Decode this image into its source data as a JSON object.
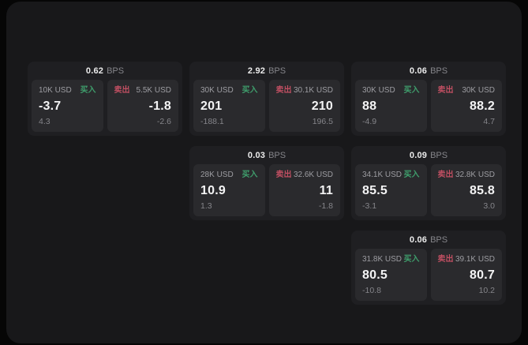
{
  "labels": {
    "unit": "BPS",
    "buy": "买入",
    "sell": "卖出"
  },
  "colors": {
    "buy": "#3f9e6c",
    "sell": "#c04f62"
  },
  "cards": [
    {
      "bps": "0.62",
      "buy": {
        "amount": "10K USD",
        "value": "-3.7",
        "delta": "4.3"
      },
      "sell": {
        "amount": "5.5K USD",
        "value": "-1.8",
        "delta": "-2.6"
      }
    },
    {
      "bps": "2.92",
      "buy": {
        "amount": "30K USD",
        "value": "201",
        "delta": "-188.1"
      },
      "sell": {
        "amount": "30.1K USD",
        "value": "210",
        "delta": "196.5"
      }
    },
    {
      "bps": "0.06",
      "buy": {
        "amount": "30K USD",
        "value": "88",
        "delta": "-4.9"
      },
      "sell": {
        "amount": "30K USD",
        "value": "88.2",
        "delta": "4.7"
      }
    },
    {
      "bps": "0.03",
      "buy": {
        "amount": "28K USD",
        "value": "10.9",
        "delta": "1.3"
      },
      "sell": {
        "amount": "32.6K USD",
        "value": "11",
        "delta": "-1.8"
      }
    },
    {
      "bps": "0.09",
      "buy": {
        "amount": "34.1K USD",
        "value": "85.5",
        "delta": "-3.1"
      },
      "sell": {
        "amount": "32.8K USD",
        "value": "85.8",
        "delta": "3.0"
      }
    },
    {
      "bps": "0.06",
      "buy": {
        "amount": "31.8K USD",
        "value": "80.5",
        "delta": "-10.8"
      },
      "sell": {
        "amount": "39.1K USD",
        "value": "80.7",
        "delta": "10.2"
      }
    }
  ]
}
